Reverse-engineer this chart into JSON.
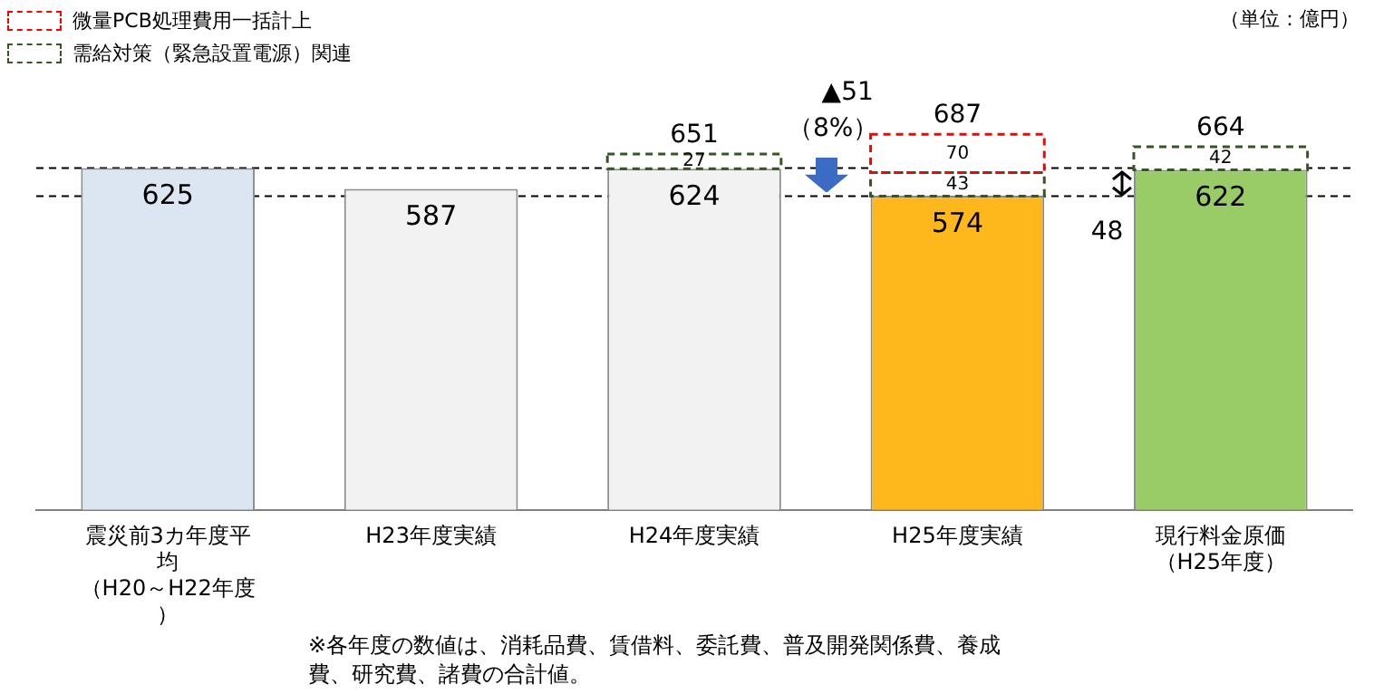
{
  "chart_data": {
    "type": "bar",
    "stacked": true,
    "categories": [
      "震災前3カ年度平均（H20～H22年度）",
      "H23年度実績",
      "H24年度実績",
      "H25年度実績",
      "現行料金原価（H25年度）"
    ],
    "series": [
      {
        "colors": [
          "#dce6f2",
          "#f2f2f2",
          "#f2f2f2",
          "#ffb81c",
          "#99cc66"
        ],
        "values": [
          625,
          587,
          624,
          574,
          622
        ]
      },
      {
        "name": "需給対策（緊急設置電源）関連",
        "color": "#375623",
        "line_style": "dashed",
        "values": [
          null,
          null,
          27,
          43,
          42
        ]
      },
      {
        "name": "微量PCB処理費用一括計上",
        "color": "#ff0000",
        "line_style": "dashed",
        "values": [
          null,
          null,
          null,
          70,
          null
        ]
      }
    ],
    "totals": [
      null,
      null,
      "651",
      "687",
      "664"
    ],
    "data_labels": true,
    "legend": "top left",
    "grid": false,
    "ref_lines": [
      {
        "axis": "y",
        "value": 625,
        "line_style": "dashed"
      },
      {
        "axis": "y",
        "value": 574,
        "line_style": "dashed"
      }
    ],
    "annotations": [
      "（単位：億円）",
      "▲51",
      "（8%）",
      "48",
      "※各年度の数値は、消耗品費、賃借料、委託費、普及開発関係費、養成費、研究費、諸費の合計値。"
    ]
  }
}
